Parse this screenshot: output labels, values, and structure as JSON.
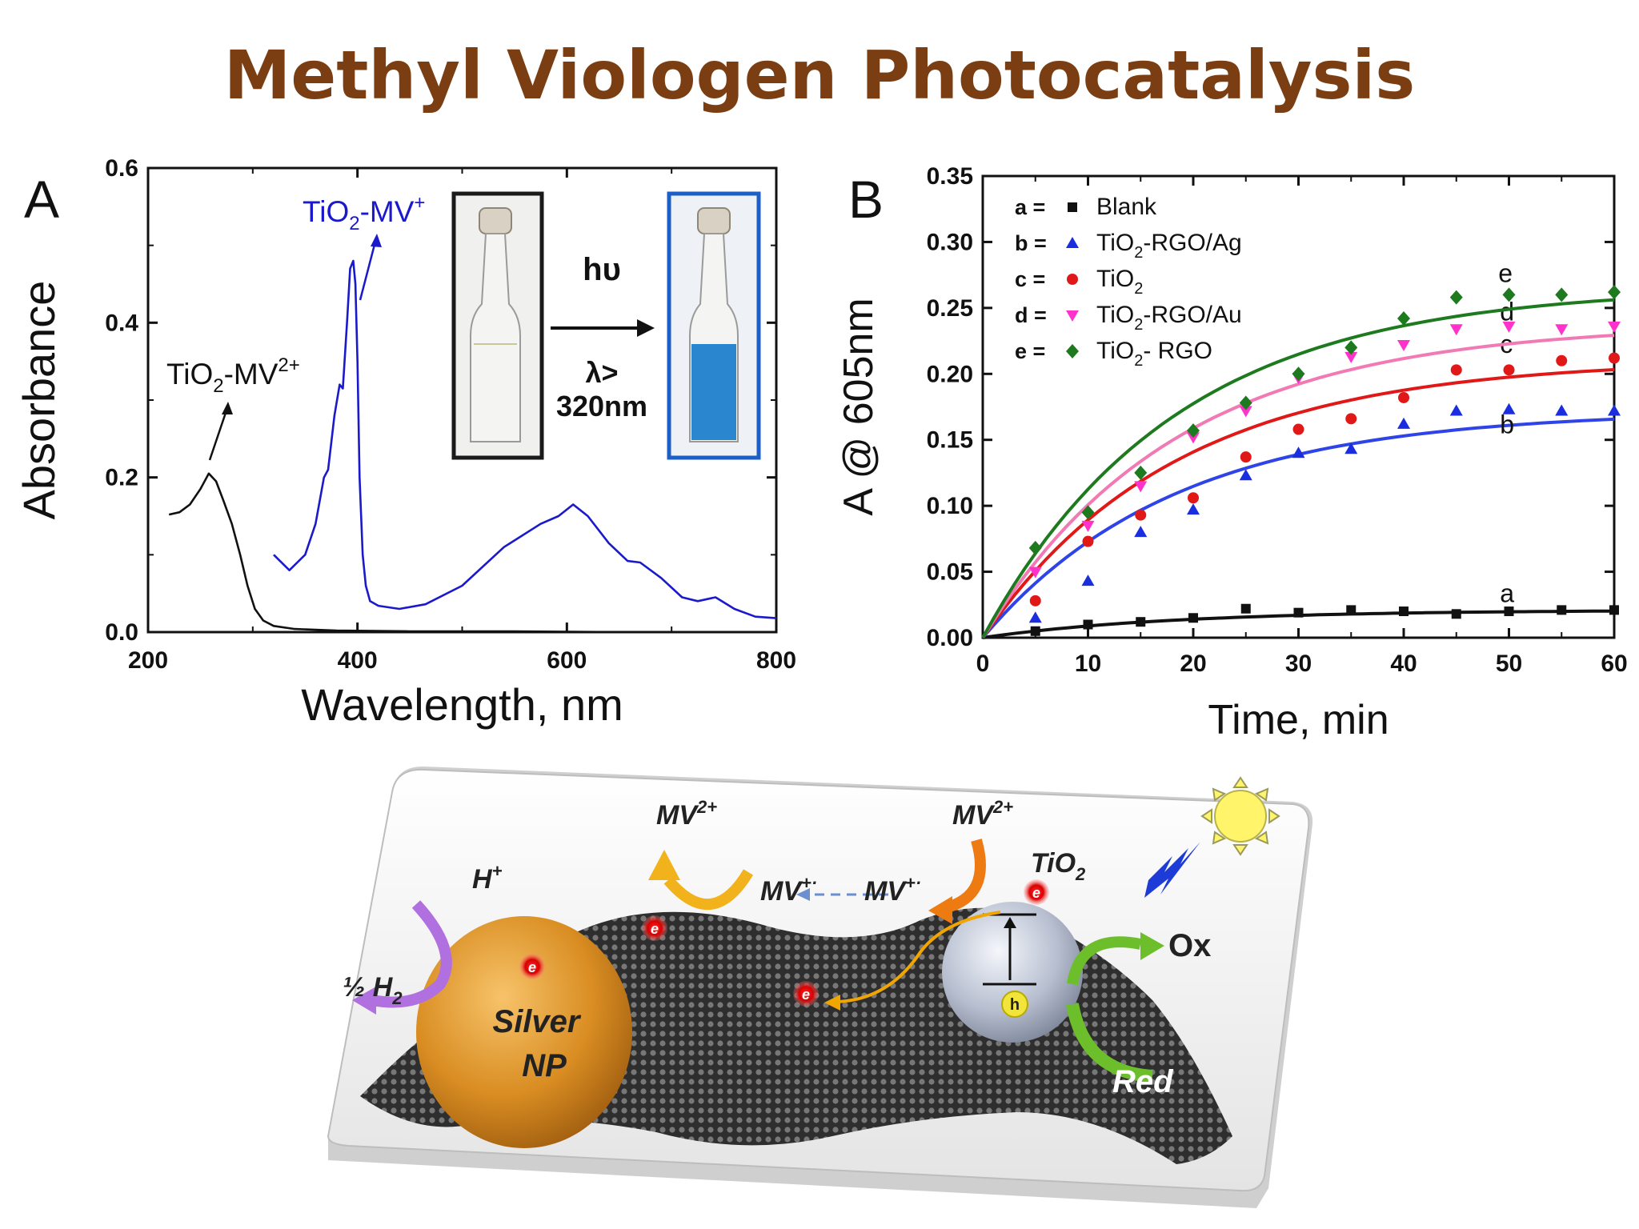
{
  "slide": {
    "title": "Methyl Viologen Photocatalysis",
    "colors": {
      "title": "#7a3e12",
      "blue_spectrum": "#1a1acc",
      "cuvette_blue": "#2a86cf"
    }
  },
  "panelA": {
    "panel_letter": "A",
    "inset": {
      "light_label": "hυ",
      "lambda_line1": "λ>",
      "lambda_line2": "320nm"
    },
    "annotations": {
      "mv2_prefix": "TiO",
      "mv2_sub": "2",
      "mv2_mid": "-MV",
      "mv2_sup": "2+",
      "mv1_prefix": "TiO",
      "mv1_sub": "2",
      "mv1_mid": "-MV",
      "mv1_sup": "+"
    }
  },
  "panelB": {
    "panel_letter": "B",
    "legend": [
      {
        "key": "a =",
        "label": "Blank",
        "sub": "",
        "tail": ""
      },
      {
        "key": "b =",
        "label": "TiO",
        "sub": "2",
        "tail": "-RGO/Ag"
      },
      {
        "key": "c =",
        "label": "TiO",
        "sub": "2",
        "tail": ""
      },
      {
        "key": "d =",
        "label": "TiO",
        "sub": "2",
        "tail": "-RGO/Au"
      },
      {
        "key": "e =",
        "label": "TiO",
        "sub": "2",
        "tail": "- RGO"
      }
    ]
  },
  "scheme": {
    "labels": {
      "mv2_left": "MV",
      "mv2_left_sup": "2+",
      "mv2_right": "MV",
      "mv2_right_sup": "2+",
      "mvp_left": "MV",
      "mvp_left_sup": "+·",
      "mvp_right": "MV",
      "mvp_right_sup": "+·",
      "tio2": "TiO",
      "tio2_sub": "2",
      "hplus": "H",
      "hplus_sup": "+",
      "half_h2": "½ H",
      "half_h2_sub": "2",
      "silver_line1": "Silver",
      "silver_line2": "NP",
      "ox": "Ox",
      "red": "Red",
      "electron": "e",
      "hole": "h"
    }
  },
  "chart_data": [
    {
      "type": "line",
      "xlabel": "Wavelength, nm",
      "ylabel": "Absorbance",
      "xlim": [
        200,
        800
      ],
      "ylim": [
        0,
        0.6
      ],
      "xticks": [
        200,
        400,
        600,
        800
      ],
      "yticks": [
        0.0,
        0.2,
        0.4,
        0.6
      ],
      "ytick_labels": [
        "0.0",
        "0.2",
        "0.4",
        "0.6"
      ],
      "series": [
        {
          "color": "#111111",
          "x": [
            220,
            230,
            240,
            250,
            258,
            265,
            272,
            280,
            288,
            295,
            302,
            310,
            320,
            340,
            380,
            450,
            550,
            650,
            800
          ],
          "y": [
            0.152,
            0.155,
            0.165,
            0.185,
            0.205,
            0.195,
            0.17,
            0.14,
            0.1,
            0.06,
            0.03,
            0.015,
            0.008,
            0.004,
            0.002,
            0.001,
            0.001,
            0.0,
            0.0
          ]
        },
        {
          "color": "#1a1acc",
          "x": [
            320,
            335,
            350,
            360,
            368,
            372,
            378,
            383,
            386,
            390,
            393,
            396,
            398,
            400,
            402,
            405,
            408,
            412,
            420,
            440,
            465,
            500,
            540,
            575,
            592,
            606,
            620,
            640,
            658,
            670,
            690,
            710,
            725,
            742,
            760,
            780,
            800
          ],
          "y": [
            0.1,
            0.08,
            0.1,
            0.14,
            0.2,
            0.21,
            0.28,
            0.32,
            0.315,
            0.4,
            0.47,
            0.48,
            0.45,
            0.35,
            0.2,
            0.1,
            0.06,
            0.04,
            0.034,
            0.03,
            0.036,
            0.06,
            0.11,
            0.14,
            0.15,
            0.165,
            0.15,
            0.115,
            0.092,
            0.09,
            0.07,
            0.045,
            0.04,
            0.045,
            0.03,
            0.02,
            0.018
          ]
        }
      ]
    },
    {
      "type": "scatter",
      "xlabel": "Time, min",
      "ylabel": "A @ 605nm",
      "xlim": [
        0,
        60
      ],
      "ylim": [
        0,
        0.35
      ],
      "xticks": [
        0,
        10,
        20,
        30,
        40,
        50,
        60
      ],
      "yticks": [
        0.0,
        0.05,
        0.1,
        0.15,
        0.2,
        0.25,
        0.3,
        0.35
      ],
      "ytick_labels": [
        "0.00",
        "0.05",
        "0.10",
        "0.15",
        "0.20",
        "0.25",
        "0.30",
        "0.35"
      ],
      "x": [
        5,
        10,
        15,
        20,
        25,
        30,
        35,
        40,
        45,
        50,
        55,
        60
      ],
      "series": [
        {
          "id": "a",
          "color": "#111111",
          "marker": "square",
          "values": [
            0.005,
            0.01,
            0.012,
            0.015,
            0.022,
            0.019,
            0.021,
            0.02,
            0.018,
            0.02,
            0.021,
            0.021
          ],
          "fit_max": 0.021,
          "curve_label": "a"
        },
        {
          "id": "b",
          "color": "#1a2ee0",
          "marker": "triangle-up",
          "values": [
            0.015,
            0.043,
            0.08,
            0.097,
            0.123,
            0.14,
            0.143,
            0.162,
            0.172,
            0.173,
            0.172,
            0.172
          ],
          "fit_max": 0.172,
          "curve_label": "b"
        },
        {
          "id": "c",
          "color": "#e01818",
          "marker": "circle",
          "values": [
            0.028,
            0.073,
            0.093,
            0.106,
            0.137,
            0.158,
            0.166,
            0.182,
            0.203,
            0.203,
            0.21,
            0.212
          ],
          "fit_max": 0.211,
          "curve_label": "c"
        },
        {
          "id": "d",
          "color": "#ff33cc",
          "marker": "triangle-down",
          "values": [
            0.05,
            0.085,
            0.115,
            0.152,
            0.172,
            0.197,
            0.213,
            0.222,
            0.234,
            0.236,
            0.234,
            0.236
          ],
          "fit_max": 0.238,
          "curve_label": "d"
        },
        {
          "id": "e",
          "color": "#1e7a1e",
          "marker": "diamond",
          "values": [
            0.068,
            0.095,
            0.125,
            0.157,
            0.178,
            0.2,
            0.22,
            0.242,
            0.258,
            0.26,
            0.26,
            0.262
          ],
          "fit_max": 0.266,
          "curve_label": "e"
        }
      ]
    }
  ]
}
